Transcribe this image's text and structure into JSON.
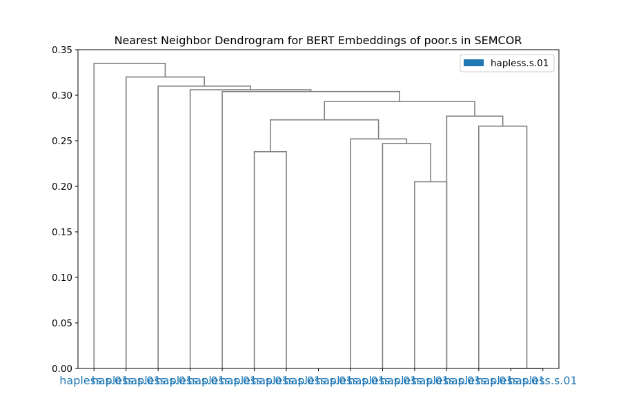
{
  "chart_data": {
    "type": "dendrogram",
    "title": "Nearest Neighbor Dendrogram for BERT Embeddings of poor.s in SEMCOR",
    "xlabel": "",
    "ylabel": "",
    "ylim": [
      0,
      0.35
    ],
    "yticks": [
      "0.00",
      "0.05",
      "0.10",
      "0.15",
      "0.20",
      "0.25",
      "0.30",
      "0.35"
    ],
    "yticks_values": [
      0,
      0.05,
      0.1,
      0.15,
      0.2,
      0.25,
      0.3,
      0.35
    ],
    "leaf_labels": [
      "hapless.s.01",
      "hapless.s.01",
      "hapless.s.01",
      "hapless.s.01",
      "hapless.s.01",
      "hapless.s.01",
      "hapless.s.01",
      "hapless.s.01",
      "hapless.s.01",
      "hapless.s.01",
      "hapless.s.01",
      "hapless.s.01",
      "hapless.s.01",
      "hapless.s.01",
      "hapless.s.01"
    ],
    "leaf_color": "#1f77b4",
    "link_color": "#7f7f7f",
    "merges": [
      [
        13,
        14,
        0.0
      ],
      [
        10,
        11,
        0.205
      ],
      [
        5,
        6,
        0.238
      ],
      [
        9,
        16,
        0.247
      ],
      [
        8,
        18,
        0.252
      ],
      [
        12,
        15,
        0.266
      ],
      [
        17,
        19,
        0.273
      ],
      [
        11,
        20,
        0.277
      ],
      [
        21,
        22,
        0.293
      ],
      [
        4,
        23,
        0.304
      ],
      [
        3,
        24,
        0.306
      ],
      [
        2,
        25,
        0.31
      ],
      [
        1,
        26,
        0.32
      ],
      [
        0,
        27,
        0.335
      ]
    ],
    "legend": {
      "entries": [
        {
          "label": "hapless.s.01",
          "color": "#1f77b4"
        }
      ],
      "placement": "top-right"
    },
    "grid": false
  }
}
